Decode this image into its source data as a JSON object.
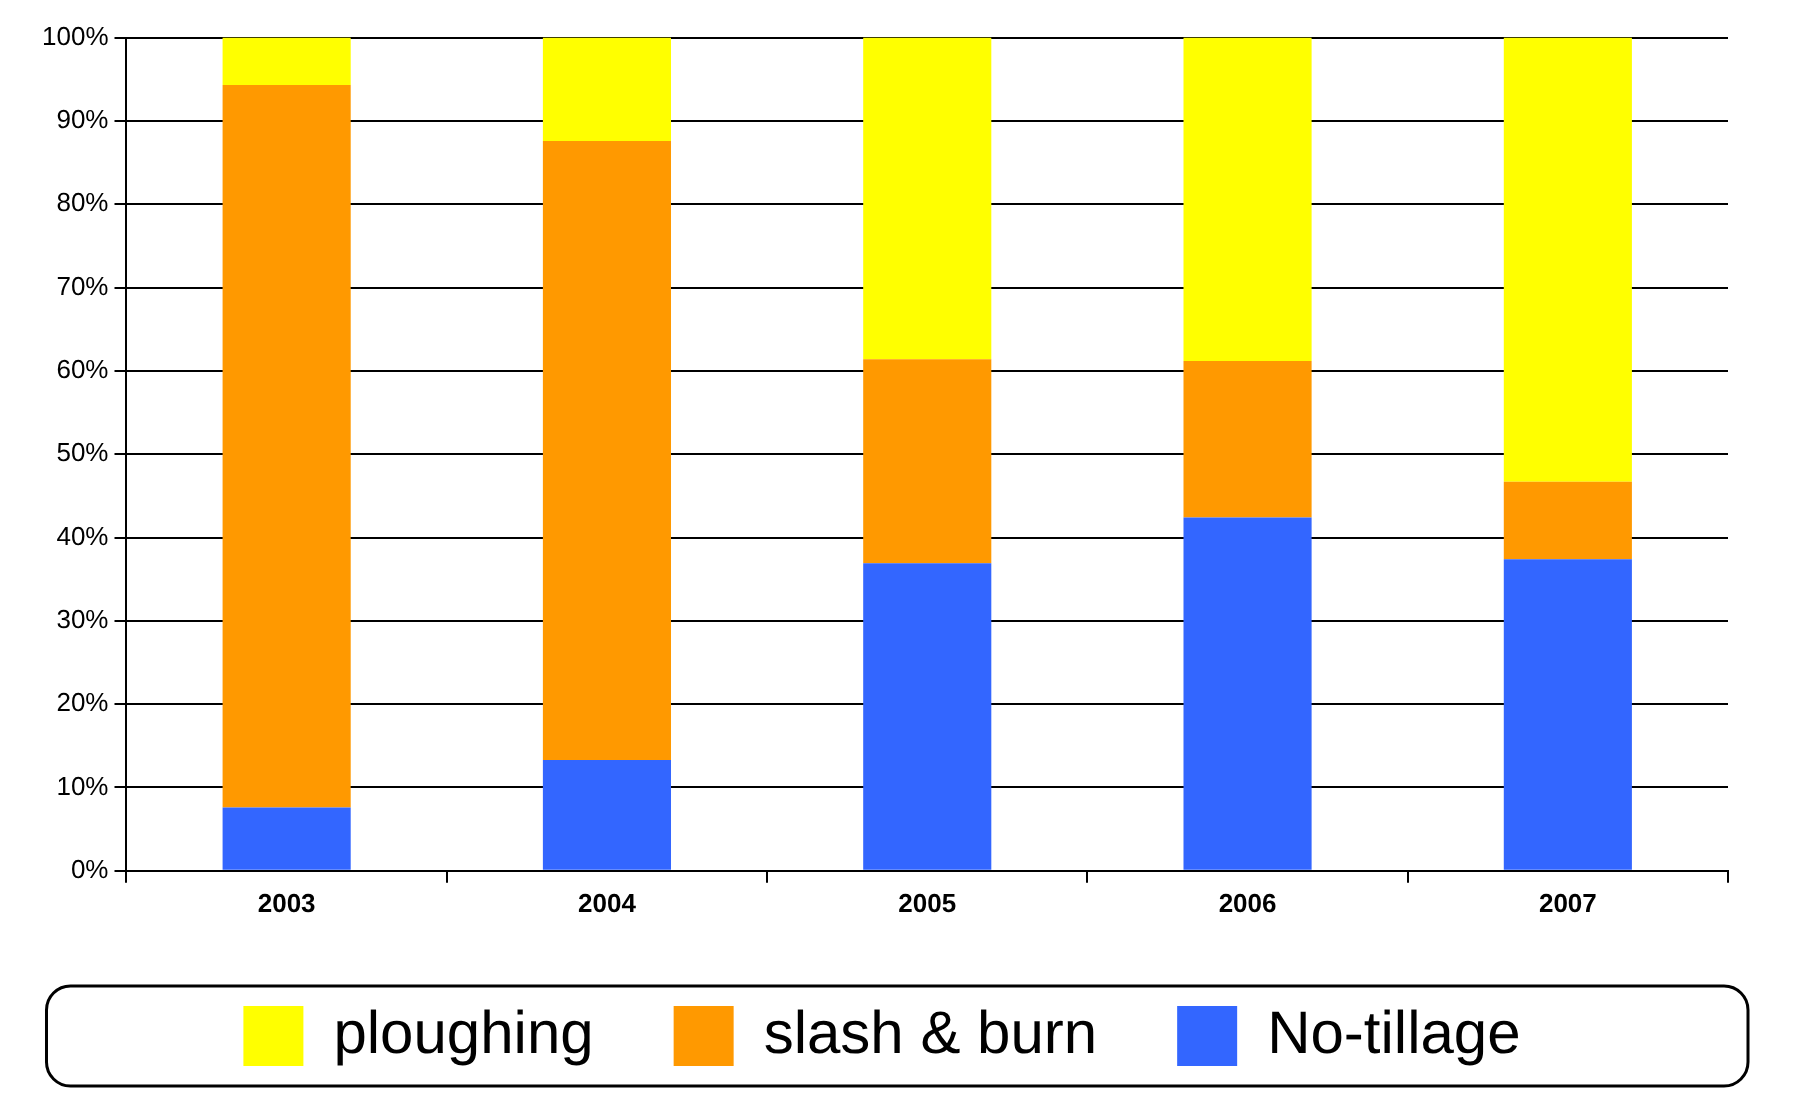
{
  "chart_data": {
    "type": "bar",
    "stacked": true,
    "categories": [
      "2003",
      "2004",
      "2005",
      "2006",
      "2007"
    ],
    "series": [
      {
        "name": "No-tillage",
        "color": "#3366ff",
        "values": [
          7.6,
          13.3,
          36.9,
          42.4,
          37.4
        ]
      },
      {
        "name": "slash & burn",
        "color": "#ff9900",
        "values": [
          86.7,
          74.3,
          24.5,
          18.8,
          9.3
        ]
      },
      {
        "name": "ploughing",
        "color": "#ffff00",
        "values": [
          5.7,
          12.4,
          38.6,
          38.8,
          53.3
        ]
      }
    ],
    "ylim": [
      0,
      100
    ],
    "yticks": [
      {
        "value": 0,
        "label": "0%"
      },
      {
        "value": 10,
        "label": "10%"
      },
      {
        "value": 20,
        "label": "20%"
      },
      {
        "value": 30,
        "label": "30%"
      },
      {
        "value": 40,
        "label": "40%"
      },
      {
        "value": 50,
        "label": "50%"
      },
      {
        "value": 60,
        "label": "60%"
      },
      {
        "value": 70,
        "label": "70%"
      },
      {
        "value": 80,
        "label": "80%"
      },
      {
        "value": 90,
        "label": "90%"
      },
      {
        "value": 100,
        "label": "100%"
      }
    ],
    "grid": "y",
    "legend": "bottom"
  }
}
